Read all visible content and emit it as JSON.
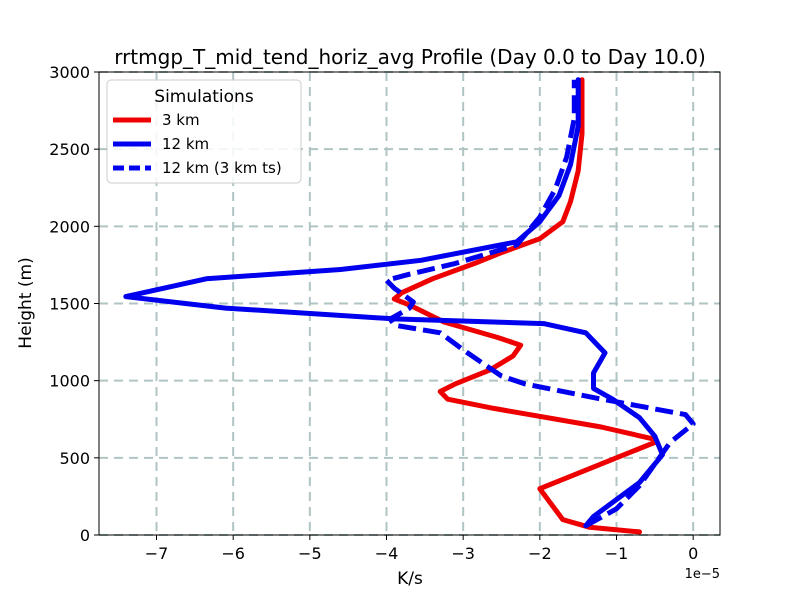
{
  "chart_data": {
    "type": "line",
    "title": "rrtmgp_T_mid_tend_horiz_avg Profile (Day 0.0 to Day 10.0)",
    "xlabel": "K/s",
    "ylabel": "Height (m)",
    "x_offset_label": "1e−5",
    "xlim": [
      -7.75,
      0.35
    ],
    "ylim": [
      0,
      3000
    ],
    "xticks": [
      {
        "value": -7,
        "label": "−7"
      },
      {
        "value": -6,
        "label": "−6"
      },
      {
        "value": -5,
        "label": "−5"
      },
      {
        "value": -4,
        "label": "−4"
      },
      {
        "value": -3,
        "label": "−3"
      },
      {
        "value": -2,
        "label": "−2"
      },
      {
        "value": -1,
        "label": "−1"
      },
      {
        "value": 0,
        "label": "0"
      }
    ],
    "yticks": [
      {
        "value": 0,
        "label": "0"
      },
      {
        "value": 500,
        "label": "500"
      },
      {
        "value": 1000,
        "label": "1000"
      },
      {
        "value": 1500,
        "label": "1500"
      },
      {
        "value": 2000,
        "label": "2000"
      },
      {
        "value": 2500,
        "label": "2500"
      },
      {
        "value": 3000,
        "label": "3000"
      }
    ],
    "grid": true,
    "legend": {
      "title": "Simulations",
      "location": "top-left"
    },
    "series": [
      {
        "name": "3 km",
        "color": "#ee0000",
        "style": "solid",
        "x": [
          -0.7,
          -1.35,
          -1.7,
          -2.0,
          -0.5,
          -0.5,
          -1.2,
          -2.6,
          -3.2,
          -3.3,
          -3.1,
          -2.65,
          -2.35,
          -2.25,
          -2.55,
          -3.25,
          -3.7,
          -3.9,
          -3.8,
          -3.4,
          -2.85,
          -2.5,
          -2.0,
          -1.7,
          -1.6,
          -1.5,
          -1.45,
          -1.45
        ],
        "y": [
          20,
          50,
          100,
          300,
          600,
          620,
          700,
          820,
          880,
          930,
          980,
          1070,
          1160,
          1230,
          1280,
          1380,
          1490,
          1530,
          1570,
          1660,
          1760,
          1830,
          1920,
          2030,
          2160,
          2360,
          2600,
          2950
        ]
      },
      {
        "name": "12 km",
        "color": "#0000ee",
        "style": "solid",
        "x": [
          -1.4,
          -1.3,
          -0.7,
          -0.4,
          -0.5,
          -0.7,
          -1.05,
          -1.3,
          -1.3,
          -1.15,
          -1.4,
          -1.95,
          -3.9,
          -6.1,
          -7.4,
          -6.35,
          -4.6,
          -3.55,
          -2.3,
          -2.0,
          -1.75,
          -1.6,
          -1.5,
          -1.5
        ],
        "y": [
          60,
          120,
          340,
          520,
          640,
          760,
          880,
          950,
          1050,
          1180,
          1310,
          1370,
          1400,
          1470,
          1545,
          1660,
          1720,
          1780,
          1900,
          2030,
          2200,
          2400,
          2650,
          2950
        ]
      },
      {
        "name": "12 km (3 km ts)",
        "color": "#0000ee",
        "style": "dashed",
        "x": [
          -1.4,
          -1.0,
          -0.7,
          -0.3,
          0.0,
          -0.1,
          -1.3,
          -2.2,
          -2.5,
          -2.65,
          -3.0,
          -3.3,
          -3.9,
          -3.95,
          -3.7,
          -3.65,
          -3.9,
          -4.0,
          -3.7,
          -3.1,
          -2.3,
          -2.0,
          -1.8,
          -1.65,
          -1.55,
          -1.55
        ],
        "y": [
          60,
          170,
          320,
          600,
          720,
          780,
          890,
          980,
          1030,
          1080,
          1200,
          1310,
          1360,
          1400,
          1470,
          1510,
          1600,
          1650,
          1690,
          1760,
          1880,
          2060,
          2240,
          2450,
          2700,
          2950
        ]
      }
    ]
  }
}
